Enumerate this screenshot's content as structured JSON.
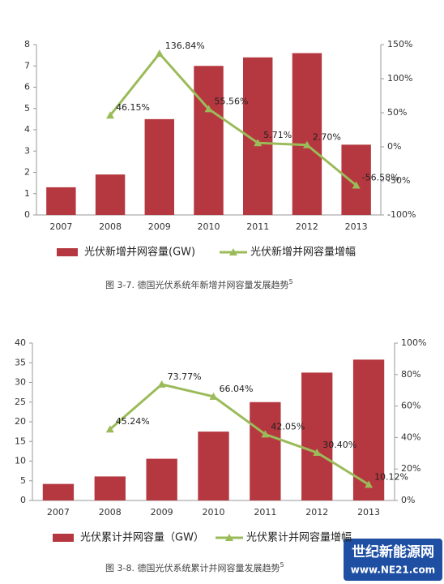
{
  "chart_data": [
    {
      "type": "bar_line",
      "categories": [
        "2007",
        "2008",
        "2009",
        "2010",
        "2011",
        "2012",
        "2013"
      ],
      "series": [
        {
          "name": "光伏新增并网容量(GW)",
          "color": "#b5373f",
          "type": "bar",
          "values": [
            1.3,
            1.9,
            4.5,
            7.0,
            7.4,
            7.6,
            3.3
          ]
        },
        {
          "name": "光伏新增并网容量增幅",
          "color": "#9bbb59",
          "type": "line",
          "axis": "y2",
          "values": [
            null,
            46.15,
            136.84,
            55.56,
            5.71,
            2.7,
            -56.58
          ],
          "value_labels": [
            null,
            "46.15%",
            "136.84%",
            "55.56%",
            "5.71%",
            "2.70%",
            "-56.58%"
          ]
        }
      ],
      "ylim": [
        0,
        8
      ],
      "yticks": [
        0,
        1,
        2,
        3,
        4,
        5,
        6,
        7,
        8
      ],
      "y2lim": [
        -100,
        150
      ],
      "y2ticks": [
        {
          "value": -100,
          "label": "-100%"
        },
        {
          "value": -50,
          "label": "-50%"
        },
        {
          "value": 0,
          "label": "0%"
        },
        {
          "value": 50,
          "label": "50%"
        },
        {
          "value": 100,
          "label": "100%"
        },
        {
          "value": 150,
          "label": "150%"
        }
      ],
      "caption": "图 3-7. 德国光伏系统年新增并网容量发展趋势",
      "caption_note": "5"
    },
    {
      "type": "bar_line",
      "categories": [
        "2007",
        "2008",
        "2009",
        "2010",
        "2011",
        "2012",
        "2013"
      ],
      "series": [
        {
          "name": "光伏累计并网容量（GW）",
          "color": "#b5373f",
          "type": "bar",
          "values": [
            4.2,
            6.1,
            10.6,
            17.5,
            25.0,
            32.5,
            35.8
          ]
        },
        {
          "name": "光伏累计并网容量增幅",
          "color": "#9bbb59",
          "type": "line",
          "axis": "y2",
          "values": [
            null,
            45.24,
            73.77,
            66.04,
            42.05,
            30.4,
            10.12
          ],
          "value_labels": [
            null,
            "45.24%",
            "73.77%",
            "66.04%",
            "42.05%",
            "30.40%",
            "10.12%"
          ]
        }
      ],
      "ylim": [
        0,
        40
      ],
      "yticks": [
        0,
        5,
        10,
        15,
        20,
        25,
        30,
        35,
        40
      ],
      "y2lim": [
        0,
        100
      ],
      "y2ticks": [
        {
          "value": 0,
          "label": "0%"
        },
        {
          "value": 20,
          "label": "20%"
        },
        {
          "value": 40,
          "label": "40%"
        },
        {
          "value": 60,
          "label": "60%"
        },
        {
          "value": 80,
          "label": "80%"
        },
        {
          "value": 100,
          "label": "100%"
        }
      ],
      "caption": "图 3-8. 德国光伏系统累计并网容量发展趋势",
      "caption_note": "5"
    }
  ],
  "watermark": {
    "name": "世纪新能源网",
    "url": "www.NE21.com"
  }
}
